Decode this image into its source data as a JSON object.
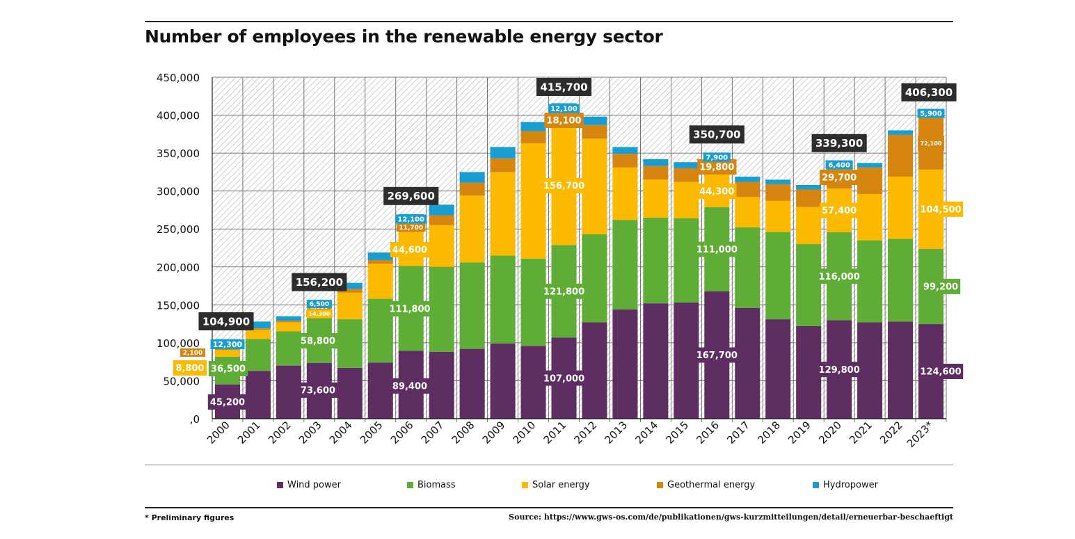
{
  "title": "Number of employees in the renewable energy sector",
  "footnote": "* Preliminary figures",
  "source": "Source: https://www.gws-os.com/de/publikationen/gws-kurzmitteilungen/detail/erneuerbar-beschaeftigt",
  "colors": {
    "wind": "#5e2d61",
    "biomass": "#5fad36",
    "solar": "#fbb900",
    "geothermal": "#d6860e",
    "hydro": "#1a9dd0",
    "total_label_bg": "#2d2d2d",
    "hatch": "#bdbdbd"
  },
  "legend": [
    {
      "key": "wind",
      "label": "Wind power"
    },
    {
      "key": "biomass",
      "label": "Biomass"
    },
    {
      "key": "solar",
      "label": "Solar energy"
    },
    {
      "key": "geothermal",
      "label": "Geothermal energy"
    },
    {
      "key": "hydro",
      "label": "Hydropower"
    }
  ],
  "chart_data": {
    "type": "bar",
    "stacked": true,
    "grid": true,
    "legend_position": "bottom",
    "ylim": [
      0,
      450000
    ],
    "y_ticks": [
      ",0",
      "50,000",
      "100,000",
      "150,000",
      "200,000",
      "250,000",
      "300,000",
      "350,000",
      "400,000",
      "450,000"
    ],
    "categories": [
      "2000",
      "2001",
      "2002",
      "2003",
      "2004",
      "2005",
      "2006",
      "2007",
      "2008",
      "2009",
      "2010",
      "2011",
      "2012",
      "2013",
      "2014",
      "2015",
      "2016",
      "2017",
      "2018",
      "2019",
      "2020",
      "2021",
      "2022",
      "2023*"
    ],
    "series": [
      {
        "key": "wind",
        "name": "Wind power",
        "values": [
          45200,
          63000,
          70000,
          73600,
          67000,
          74000,
          89400,
          88000,
          92000,
          99000,
          96000,
          107000,
          127000,
          144000,
          152000,
          153000,
          167700,
          146000,
          131000,
          122000,
          129800,
          127000,
          128000,
          124600
        ]
      },
      {
        "key": "biomass",
        "name": "Biomass",
        "values": [
          36500,
          42000,
          45000,
          58800,
          64000,
          84000,
          111800,
          112000,
          114000,
          116000,
          115000,
          121800,
          116000,
          118000,
          113000,
          111000,
          111000,
          106000,
          115000,
          108000,
          116000,
          108000,
          109000,
          99200
        ]
      },
      {
        "key": "solar",
        "name": "Solar energy",
        "values": [
          8800,
          12000,
          12000,
          14300,
          35000,
          46000,
          44600,
          55000,
          88000,
          110000,
          152000,
          156700,
          126000,
          69000,
          50000,
          48000,
          44300,
          40000,
          41000,
          49000,
          57400,
          61000,
          82000,
          104500
        ]
      },
      {
        "key": "geothermal",
        "name": "Geothermal energy",
        "values": [
          2100,
          2000,
          2000,
          3000,
          5000,
          5000,
          11700,
          13000,
          17000,
          18000,
          16000,
          18100,
          18000,
          18000,
          18000,
          18000,
          19800,
          20000,
          22000,
          23000,
          29700,
          35000,
          55000,
          72100
        ]
      },
      {
        "key": "hydro",
        "name": "Hydropower",
        "values": [
          12300,
          9000,
          6000,
          6500,
          8000,
          10000,
          12100,
          14000,
          14000,
          15000,
          12000,
          12100,
          11000,
          9000,
          9000,
          8000,
          7900,
          7000,
          6000,
          6000,
          6400,
          6000,
          6000,
          5900
        ]
      }
    ],
    "totals": [
      {
        "year": "2000",
        "label": "104,900"
      },
      {
        "year": "2003",
        "label": "156,200"
      },
      {
        "year": "2006",
        "label": "269,600"
      },
      {
        "year": "2011",
        "label": "415,700"
      },
      {
        "year": "2016",
        "label": "350,700"
      },
      {
        "year": "2020",
        "label": "339,300"
      },
      {
        "year": "2023*",
        "label": "406,300"
      }
    ],
    "data_labels": [
      {
        "year": "2000",
        "series": "wind",
        "label": "45,200"
      },
      {
        "year": "2000",
        "series": "biomass",
        "label": "36,500"
      },
      {
        "year": "2000",
        "series": "solar",
        "label": "8,800"
      },
      {
        "year": "2000",
        "series": "geothermal",
        "label": "2,100"
      },
      {
        "year": "2000",
        "series": "hydro",
        "label": "12,300"
      },
      {
        "year": "2003",
        "series": "wind",
        "label": "73,600"
      },
      {
        "year": "2003",
        "series": "biomass",
        "label": "58,800"
      },
      {
        "year": "2003",
        "series": "solar",
        "label": "14,300"
      },
      {
        "year": "2003",
        "series": "geothermal",
        "label": "3,000"
      },
      {
        "year": "2003",
        "series": "hydro",
        "label": "6,500"
      },
      {
        "year": "2006",
        "series": "wind",
        "label": "89,400"
      },
      {
        "year": "2006",
        "series": "biomass",
        "label": "111,800"
      },
      {
        "year": "2006",
        "series": "solar",
        "label": "44,600"
      },
      {
        "year": "2006",
        "series": "geothermal",
        "label": "11,700"
      },
      {
        "year": "2006",
        "series": "hydro",
        "label": "12,100"
      },
      {
        "year": "2011",
        "series": "wind",
        "label": "107,000"
      },
      {
        "year": "2011",
        "series": "biomass",
        "label": "121,800"
      },
      {
        "year": "2011",
        "series": "solar",
        "label": "156,700"
      },
      {
        "year": "2011",
        "series": "geothermal",
        "label": "18,100"
      },
      {
        "year": "2011",
        "series": "hydro",
        "label": "12,100"
      },
      {
        "year": "2016",
        "series": "wind",
        "label": "167,700"
      },
      {
        "year": "2016",
        "series": "biomass",
        "label": "111,000"
      },
      {
        "year": "2016",
        "series": "solar",
        "label": "44,300"
      },
      {
        "year": "2016",
        "series": "geothermal",
        "label": "19,800"
      },
      {
        "year": "2016",
        "series": "hydro",
        "label": "7,900"
      },
      {
        "year": "2020",
        "series": "wind",
        "label": "129,800"
      },
      {
        "year": "2020",
        "series": "biomass",
        "label": "116,000"
      },
      {
        "year": "2020",
        "series": "solar",
        "label": "57,400"
      },
      {
        "year": "2020",
        "series": "geothermal",
        "label": "29,700"
      },
      {
        "year": "2020",
        "series": "hydro",
        "label": "6,400"
      },
      {
        "year": "2023*",
        "series": "wind",
        "label": "124,600"
      },
      {
        "year": "2023*",
        "series": "biomass",
        "label": "99,200"
      },
      {
        "year": "2023*",
        "series": "solar",
        "label": "104,500"
      },
      {
        "year": "2023*",
        "series": "geothermal",
        "label": "72,100"
      },
      {
        "year": "2023*",
        "series": "hydro",
        "label": "5,900"
      }
    ]
  }
}
